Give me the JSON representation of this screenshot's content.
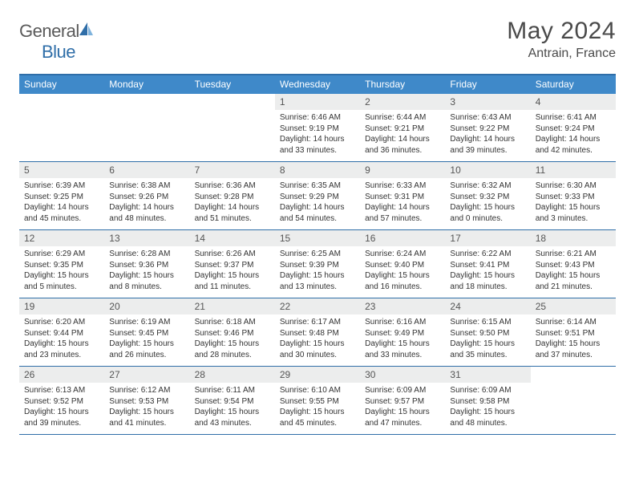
{
  "brand": {
    "part1": "General",
    "part2": "Blue"
  },
  "title": "May 2024",
  "location": "Antrain, France",
  "colors": {
    "header_bg": "#3f89c9",
    "header_border": "#2f6ea8",
    "daynum_bg": "#eceded",
    "text": "#333333",
    "title_text": "#4a4a4a",
    "logo_gray": "#5a5a5a",
    "logo_blue": "#2f6ea8"
  },
  "weekdays": [
    "Sunday",
    "Monday",
    "Tuesday",
    "Wednesday",
    "Thursday",
    "Friday",
    "Saturday"
  ],
  "weeks": [
    [
      {
        "day": "",
        "empty": true
      },
      {
        "day": "",
        "empty": true
      },
      {
        "day": "",
        "empty": true
      },
      {
        "day": "1",
        "sunrise": "Sunrise: 6:46 AM",
        "sunset": "Sunset: 9:19 PM",
        "daylight": "Daylight: 14 hours and 33 minutes."
      },
      {
        "day": "2",
        "sunrise": "Sunrise: 6:44 AM",
        "sunset": "Sunset: 9:21 PM",
        "daylight": "Daylight: 14 hours and 36 minutes."
      },
      {
        "day": "3",
        "sunrise": "Sunrise: 6:43 AM",
        "sunset": "Sunset: 9:22 PM",
        "daylight": "Daylight: 14 hours and 39 minutes."
      },
      {
        "day": "4",
        "sunrise": "Sunrise: 6:41 AM",
        "sunset": "Sunset: 9:24 PM",
        "daylight": "Daylight: 14 hours and 42 minutes."
      }
    ],
    [
      {
        "day": "5",
        "sunrise": "Sunrise: 6:39 AM",
        "sunset": "Sunset: 9:25 PM",
        "daylight": "Daylight: 14 hours and 45 minutes."
      },
      {
        "day": "6",
        "sunrise": "Sunrise: 6:38 AM",
        "sunset": "Sunset: 9:26 PM",
        "daylight": "Daylight: 14 hours and 48 minutes."
      },
      {
        "day": "7",
        "sunrise": "Sunrise: 6:36 AM",
        "sunset": "Sunset: 9:28 PM",
        "daylight": "Daylight: 14 hours and 51 minutes."
      },
      {
        "day": "8",
        "sunrise": "Sunrise: 6:35 AM",
        "sunset": "Sunset: 9:29 PM",
        "daylight": "Daylight: 14 hours and 54 minutes."
      },
      {
        "day": "9",
        "sunrise": "Sunrise: 6:33 AM",
        "sunset": "Sunset: 9:31 PM",
        "daylight": "Daylight: 14 hours and 57 minutes."
      },
      {
        "day": "10",
        "sunrise": "Sunrise: 6:32 AM",
        "sunset": "Sunset: 9:32 PM",
        "daylight": "Daylight: 15 hours and 0 minutes."
      },
      {
        "day": "11",
        "sunrise": "Sunrise: 6:30 AM",
        "sunset": "Sunset: 9:33 PM",
        "daylight": "Daylight: 15 hours and 3 minutes."
      }
    ],
    [
      {
        "day": "12",
        "sunrise": "Sunrise: 6:29 AM",
        "sunset": "Sunset: 9:35 PM",
        "daylight": "Daylight: 15 hours and 5 minutes."
      },
      {
        "day": "13",
        "sunrise": "Sunrise: 6:28 AM",
        "sunset": "Sunset: 9:36 PM",
        "daylight": "Daylight: 15 hours and 8 minutes."
      },
      {
        "day": "14",
        "sunrise": "Sunrise: 6:26 AM",
        "sunset": "Sunset: 9:37 PM",
        "daylight": "Daylight: 15 hours and 11 minutes."
      },
      {
        "day": "15",
        "sunrise": "Sunrise: 6:25 AM",
        "sunset": "Sunset: 9:39 PM",
        "daylight": "Daylight: 15 hours and 13 minutes."
      },
      {
        "day": "16",
        "sunrise": "Sunrise: 6:24 AM",
        "sunset": "Sunset: 9:40 PM",
        "daylight": "Daylight: 15 hours and 16 minutes."
      },
      {
        "day": "17",
        "sunrise": "Sunrise: 6:22 AM",
        "sunset": "Sunset: 9:41 PM",
        "daylight": "Daylight: 15 hours and 18 minutes."
      },
      {
        "day": "18",
        "sunrise": "Sunrise: 6:21 AM",
        "sunset": "Sunset: 9:43 PM",
        "daylight": "Daylight: 15 hours and 21 minutes."
      }
    ],
    [
      {
        "day": "19",
        "sunrise": "Sunrise: 6:20 AM",
        "sunset": "Sunset: 9:44 PM",
        "daylight": "Daylight: 15 hours and 23 minutes."
      },
      {
        "day": "20",
        "sunrise": "Sunrise: 6:19 AM",
        "sunset": "Sunset: 9:45 PM",
        "daylight": "Daylight: 15 hours and 26 minutes."
      },
      {
        "day": "21",
        "sunrise": "Sunrise: 6:18 AM",
        "sunset": "Sunset: 9:46 PM",
        "daylight": "Daylight: 15 hours and 28 minutes."
      },
      {
        "day": "22",
        "sunrise": "Sunrise: 6:17 AM",
        "sunset": "Sunset: 9:48 PM",
        "daylight": "Daylight: 15 hours and 30 minutes."
      },
      {
        "day": "23",
        "sunrise": "Sunrise: 6:16 AM",
        "sunset": "Sunset: 9:49 PM",
        "daylight": "Daylight: 15 hours and 33 minutes."
      },
      {
        "day": "24",
        "sunrise": "Sunrise: 6:15 AM",
        "sunset": "Sunset: 9:50 PM",
        "daylight": "Daylight: 15 hours and 35 minutes."
      },
      {
        "day": "25",
        "sunrise": "Sunrise: 6:14 AM",
        "sunset": "Sunset: 9:51 PM",
        "daylight": "Daylight: 15 hours and 37 minutes."
      }
    ],
    [
      {
        "day": "26",
        "sunrise": "Sunrise: 6:13 AM",
        "sunset": "Sunset: 9:52 PM",
        "daylight": "Daylight: 15 hours and 39 minutes."
      },
      {
        "day": "27",
        "sunrise": "Sunrise: 6:12 AM",
        "sunset": "Sunset: 9:53 PM",
        "daylight": "Daylight: 15 hours and 41 minutes."
      },
      {
        "day": "28",
        "sunrise": "Sunrise: 6:11 AM",
        "sunset": "Sunset: 9:54 PM",
        "daylight": "Daylight: 15 hours and 43 minutes."
      },
      {
        "day": "29",
        "sunrise": "Sunrise: 6:10 AM",
        "sunset": "Sunset: 9:55 PM",
        "daylight": "Daylight: 15 hours and 45 minutes."
      },
      {
        "day": "30",
        "sunrise": "Sunrise: 6:09 AM",
        "sunset": "Sunset: 9:57 PM",
        "daylight": "Daylight: 15 hours and 47 minutes."
      },
      {
        "day": "31",
        "sunrise": "Sunrise: 6:09 AM",
        "sunset": "Sunset: 9:58 PM",
        "daylight": "Daylight: 15 hours and 48 minutes."
      },
      {
        "day": "",
        "empty": true
      }
    ]
  ]
}
